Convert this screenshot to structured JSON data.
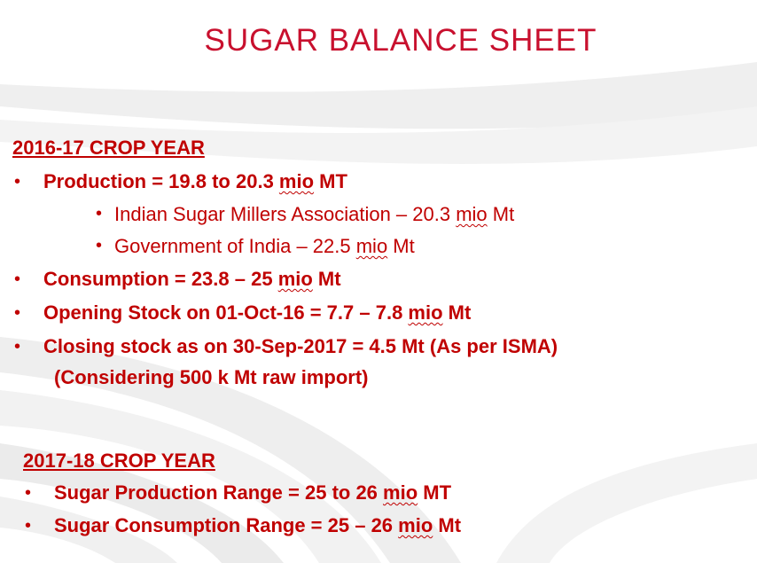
{
  "title": "SUGAR BALANCE SHEET",
  "section1": {
    "heading": "2016-17 CROP YEAR",
    "production": {
      "pre": "Production = 19.8 to 20.3 ",
      "mio": "mio",
      "post": " MT"
    },
    "isma": {
      "pre": "Indian Sugar Millers Association – 20.3 ",
      "mio": "mio",
      "post": " Mt"
    },
    "goi": {
      "pre": "Government of India – 22.5 ",
      "mio": "mio",
      "post": " Mt"
    },
    "consumption": {
      "pre": "Consumption = 23.8 – 25 ",
      "mio": "mio",
      "post": " Mt"
    },
    "opening": {
      "pre": "Opening Stock on 01-Oct-16 = 7.7 – 7.8 ",
      "mio": "mio",
      "post": " Mt"
    },
    "closing": "Closing stock as on 30-Sep-2017 = 4.5 Mt (As per ISMA)",
    "closing_note": "(Considering 500 k Mt raw import)"
  },
  "section2": {
    "heading": "2017-18 CROP YEAR",
    "production": {
      "pre": "Sugar Production Range = 25 to 26 ",
      "mio": "mio",
      "post": " MT"
    },
    "consumption": {
      "pre": "Sugar Consumption Range = 25 – 26 ",
      "mio": "mio",
      "post": " Mt"
    }
  },
  "bullet_char": "•",
  "colors": {
    "accent": "#c00000",
    "title": "#c8102e"
  }
}
